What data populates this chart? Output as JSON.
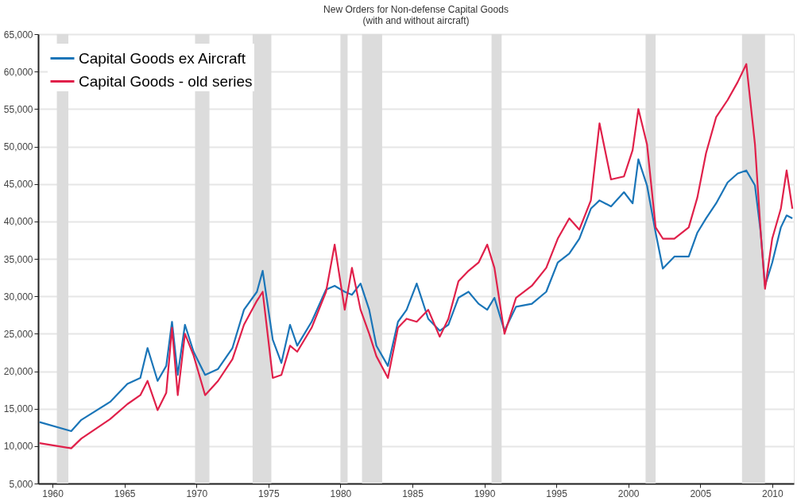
{
  "chart_data": {
    "type": "line",
    "title": "New Orders for Non-defense Capital Goods",
    "subtitle": "(with and without aircraft)",
    "x": [
      1959.1,
      1961.3,
      1962.0,
      1964.0,
      1965.2,
      1966.1,
      1966.6,
      1967.3,
      1967.9,
      1968.3,
      1968.7,
      1969.2,
      1969.8,
      1970.6,
      1971.5,
      1972.5,
      1973.3,
      1974.2,
      1974.6,
      1975.3,
      1975.9,
      1976.5,
      1977.0,
      1978.0,
      1979.0,
      1979.6,
      1980.3,
      1980.8,
      1981.4,
      1982.0,
      1982.5,
      1983.3,
      1984.0,
      1984.6,
      1985.3,
      1986.1,
      1986.9,
      1987.5,
      1988.2,
      1988.9,
      1989.6,
      1990.2,
      1990.7,
      1991.4,
      1992.2,
      1993.3,
      1994.3,
      1995.1,
      1995.9,
      1996.6,
      1997.4,
      1998.0,
      1998.8,
      1999.7,
      2000.3,
      2000.7,
      2001.3,
      2001.9,
      2002.4,
      2003.2,
      2004.2,
      2004.8,
      2005.4,
      2006.1,
      2006.9,
      2007.6,
      2008.2,
      2008.8,
      2009.2,
      2009.5,
      2010.0,
      2010.6,
      2011.0,
      2011.4
    ],
    "series": [
      {
        "name": "Capital Goods ex Aircraft",
        "color": "#1a75b8",
        "values": [
          13200,
          12000,
          13500,
          15900,
          18300,
          19100,
          23100,
          18700,
          20700,
          26600,
          19500,
          26200,
          22600,
          19500,
          20300,
          23100,
          28200,
          30600,
          33400,
          24200,
          21100,
          26200,
          23400,
          26600,
          30900,
          31400,
          30600,
          30200,
          31700,
          28200,
          23400,
          20700,
          26600,
          28200,
          31700,
          27000,
          25400,
          26200,
          29800,
          30600,
          29000,
          28200,
          29800,
          25400,
          28600,
          29000,
          30600,
          34500,
          35700,
          37700,
          41700,
          42800,
          42000,
          43900,
          42400,
          48300,
          44800,
          38500,
          33700,
          35300,
          35300,
          38500,
          40400,
          42400,
          45200,
          46400,
          46800,
          44800,
          38500,
          31400,
          34500,
          39200,
          40800,
          40400
        ]
      },
      {
        "name": "Capital Goods - old series",
        "color": "#e0204a",
        "values": [
          10400,
          9700,
          11000,
          13600,
          15600,
          16800,
          18700,
          14800,
          17100,
          25800,
          16800,
          25000,
          22100,
          16800,
          18700,
          21600,
          26200,
          29400,
          30600,
          19100,
          19500,
          23400,
          22600,
          25800,
          30600,
          36900,
          28200,
          33800,
          28200,
          25000,
          22000,
          19100,
          25800,
          27000,
          26600,
          28200,
          24600,
          27000,
          32000,
          33400,
          34500,
          36900,
          33800,
          25000,
          29800,
          31400,
          33800,
          37700,
          40400,
          38900,
          42800,
          53100,
          45600,
          46000,
          49500,
          55000,
          50300,
          39200,
          37700,
          37700,
          39200,
          43200,
          49100,
          53900,
          56200,
          58600,
          61000,
          50300,
          38500,
          31000,
          37700,
          41700,
          46800,
          41700
        ]
      }
    ],
    "xlim": [
      1959,
      2011.5
    ],
    "xticks": [
      1960,
      1965,
      1970,
      1975,
      1980,
      1985,
      1990,
      1995,
      2000,
      2005,
      2010
    ],
    "ylim": [
      5000,
      65000
    ],
    "yticks": [
      {
        "value": 5000,
        "label": "5,000"
      },
      {
        "value": 10000,
        "label": "10,000"
      },
      {
        "value": 15000,
        "label": "15,000"
      },
      {
        "value": 20000,
        "label": "20,000"
      },
      {
        "value": 25000,
        "label": "25,000"
      },
      {
        "value": 30000,
        "label": "30,000"
      },
      {
        "value": 35000,
        "label": "35,000"
      },
      {
        "value": 40000,
        "label": "40,000"
      },
      {
        "value": 45000,
        "label": "45,000"
      },
      {
        "value": 50000,
        "label": "50,000"
      },
      {
        "value": 55000,
        "label": "55,000"
      },
      {
        "value": 60000,
        "label": "60,000"
      },
      {
        "value": 65000,
        "label": "65,000"
      }
    ],
    "bands": [
      {
        "axis": "x",
        "from": 1960.3,
        "to": 1961.1,
        "color": "#dcdcdc"
      },
      {
        "axis": "x",
        "from": 1969.9,
        "to": 1970.9,
        "color": "#dcdcdc"
      },
      {
        "axis": "x",
        "from": 1973.9,
        "to": 1975.2,
        "color": "#dcdcdc"
      },
      {
        "axis": "x",
        "from": 1980.0,
        "to": 1980.5,
        "color": "#dcdcdc"
      },
      {
        "axis": "x",
        "from": 1981.5,
        "to": 1982.9,
        "color": "#dcdcdc"
      },
      {
        "axis": "x",
        "from": 1990.5,
        "to": 1991.2,
        "color": "#dcdcdc"
      },
      {
        "axis": "x",
        "from": 2001.2,
        "to": 2001.9,
        "color": "#dcdcdc"
      },
      {
        "axis": "x",
        "from": 2007.9,
        "to": 2009.5,
        "color": "#dcdcdc"
      }
    ],
    "grid": "y",
    "legend": "top left",
    "line_style": "solid",
    "marker": "none"
  }
}
